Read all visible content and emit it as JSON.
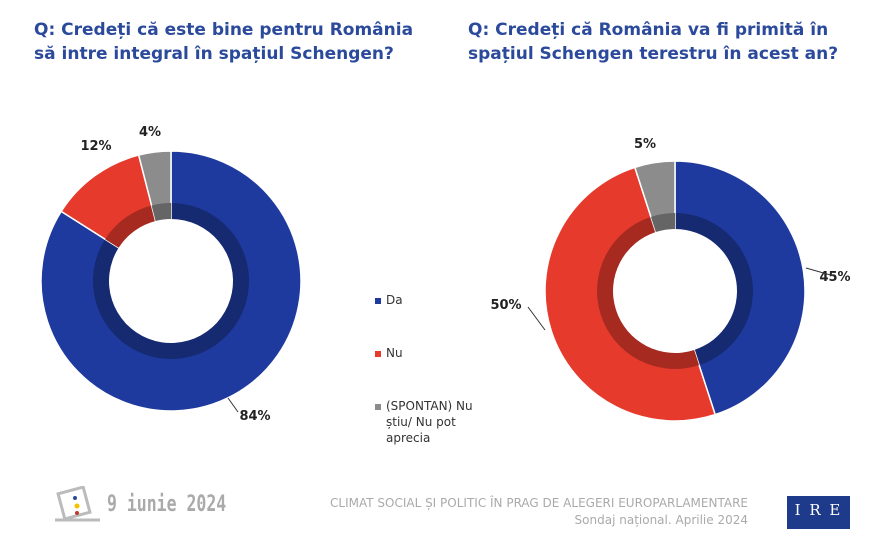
{
  "chart_data": [
    {
      "type": "pie",
      "title": "Q: Credeți că este bine pentru România să intre integral în spațiul Schengen?",
      "categories": [
        "Da",
        "Nu",
        "(SPONTAN) Nu știu/ Nu pot aprecia"
      ],
      "values": [
        84,
        12,
        4
      ],
      "labels": [
        "84%",
        "12%",
        "4%"
      ],
      "colors": [
        "#1f3a9e",
        "#e63a2c",
        "#8c8c8c"
      ],
      "donut": true
    },
    {
      "type": "pie",
      "title": "Q: Credeți că România va fi primită în spațiul Schengen terestru în acest an?",
      "categories": [
        "Da",
        "Nu",
        "(SPONTAN) Nu știu/ Nu pot aprecia"
      ],
      "values": [
        45,
        50,
        5
      ],
      "labels": [
        "45%",
        "50%",
        "5%"
      ],
      "colors": [
        "#1f3a9e",
        "#e63a2c",
        "#8c8c8c"
      ],
      "donut": true
    }
  ],
  "legend": {
    "position": "center",
    "items": [
      "Da",
      "Nu",
      "(SPONTAN) Nu știu/ Nu pot aprecia"
    ]
  },
  "footer": {
    "date": "9 iunie 2024",
    "title": "CLIMAT SOCIAL ȘI POLITIC ÎN PRAG DE ALEGERI EUROPARLAMENTARE",
    "subtitle": "Sondaj național. Aprilie 2024",
    "logo": "IRES"
  }
}
